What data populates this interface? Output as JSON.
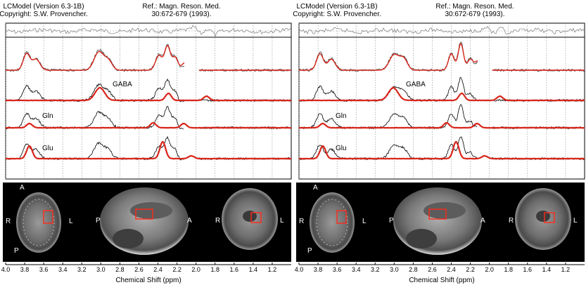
{
  "header": {
    "program": "LCModel (Version 6.3-1B)",
    "copyright": "Copyright: S.W. Provencher.",
    "reference_line1": "Ref.: Magn. Reson. Med.",
    "reference_line2": "30:672-679 (1993)."
  },
  "chart_data": [
    {
      "type": "line",
      "panel": "left",
      "xlabel": "Chemical Shift (ppm)",
      "xlim": [
        4.0,
        1.0
      ],
      "x_reversed": true,
      "ticks": [
        "4.0",
        "3.8",
        "3.6",
        "3.4",
        "3.2",
        "3.0",
        "2.8",
        "2.6",
        "2.4",
        "2.2",
        "2.0",
        "1.8",
        "1.6",
        "1.4",
        "1.2"
      ],
      "series": [
        {
          "label": "",
          "role": "residual"
        },
        {
          "label": "",
          "role": "data with fit"
        },
        {
          "label": "GABA",
          "peaks_ppm": [
            3.01,
            2.29,
            1.89
          ]
        },
        {
          "label": "Gln",
          "peaks_ppm": [
            3.75,
            2.45,
            2.13
          ]
        },
        {
          "label": "Glu",
          "peaks_ppm": [
            3.75,
            2.35,
            2.05
          ]
        }
      ],
      "mri_orientation_labels": {
        "axial": [
          "A",
          "R",
          "L",
          "P"
        ],
        "sagittal": [
          "P",
          "A"
        ],
        "coronal": [
          "R",
          "L"
        ]
      }
    },
    {
      "type": "line",
      "panel": "right",
      "xlabel": "Chemical Shift (ppm)",
      "xlim": [
        4.0,
        1.0
      ],
      "x_reversed": true,
      "ticks": [
        "4.0",
        "3.8",
        "3.6",
        "3.4",
        "3.2",
        "3.0",
        "2.8",
        "2.6",
        "2.4",
        "2.2",
        "2.0",
        "1.8",
        "1.6",
        "1.4",
        "1.2"
      ],
      "series": [
        {
          "label": "",
          "role": "residual"
        },
        {
          "label": "",
          "role": "data with fit"
        },
        {
          "label": "GABA",
          "peaks_ppm": [
            3.01,
            2.29,
            1.89
          ]
        },
        {
          "label": "Gln",
          "peaks_ppm": [
            3.75,
            2.45,
            2.13
          ]
        },
        {
          "label": "Glu",
          "peaks_ppm": [
            3.75,
            2.35,
            2.05
          ]
        }
      ],
      "mri_orientation_labels": {
        "axial": [
          "A",
          "R",
          "L",
          "P"
        ],
        "sagittal": [
          "P",
          "A"
        ],
        "coronal": [
          "R",
          "L"
        ]
      }
    }
  ]
}
